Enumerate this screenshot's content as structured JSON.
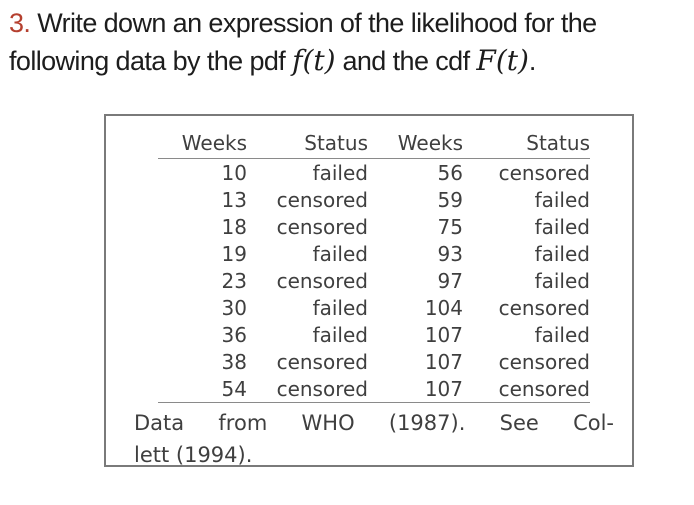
{
  "title": {
    "number": "3.",
    "line1": " Write down an expression of the likelihood for the",
    "line2_pre": "following data by the pdf ",
    "math_pdf": "f(t)",
    "line2_mid": " and the cdf ",
    "math_cdf": "F(t)",
    "line2_end": "."
  },
  "colors": {
    "accent_red": "#b5402f",
    "title_text": "#1d1d1d",
    "table_text": "#3f3f3f",
    "rule_gray": "#8a8a8a",
    "box_border": "#7a7a7a"
  },
  "table": {
    "columns": [
      "Weeks",
      "Status",
      "Weeks",
      "Status"
    ],
    "rows": [
      [
        "10",
        "failed",
        "56",
        "censored"
      ],
      [
        "13",
        "censored",
        "59",
        "failed"
      ],
      [
        "18",
        "censored",
        "75",
        "failed"
      ],
      [
        "19",
        "failed",
        "93",
        "failed"
      ],
      [
        "23",
        "censored",
        "97",
        "failed"
      ],
      [
        "30",
        "failed",
        "104",
        "censored"
      ],
      [
        "36",
        "failed",
        "107",
        "failed"
      ],
      [
        "38",
        "censored",
        "107",
        "censored"
      ],
      [
        "54",
        "censored",
        "107",
        "censored"
      ]
    ],
    "source_line1_words": [
      "Data",
      "from",
      "WHO",
      "(1987).",
      "See",
      "Col-"
    ],
    "source_line2": "lett (1994)."
  }
}
